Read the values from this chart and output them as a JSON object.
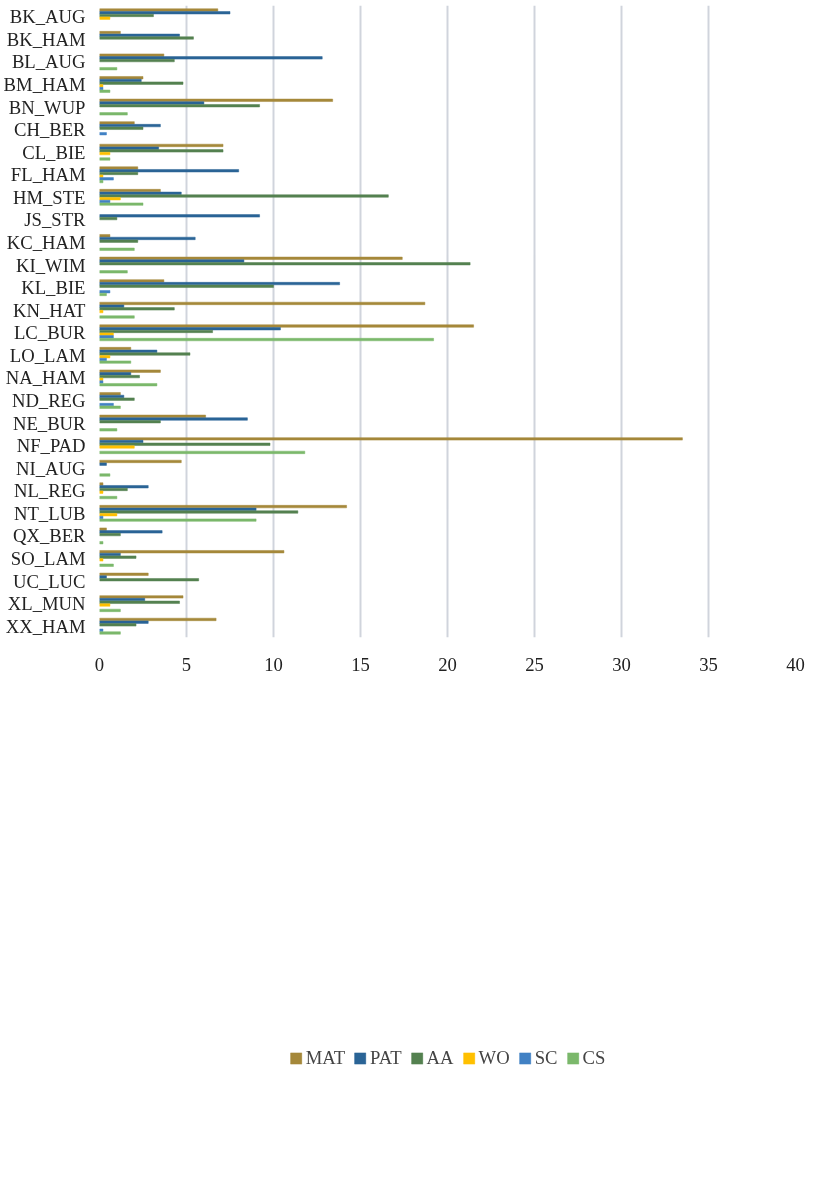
{
  "chart_data": {
    "type": "bar",
    "orientation": "horizontal",
    "categories": [
      "BK_AUG",
      "BK_HAM",
      "BL_AUG",
      "BM_HAM",
      "BN_WUP",
      "CH_BER",
      "CL_BIE",
      "FL_HAM",
      "HM_STE",
      "JS_STR",
      "KC_HAM",
      "KI_WIM",
      "KL_BIE",
      "KN_HAT",
      "LC_BUR",
      "LO_LAM",
      "NA_HAM",
      "ND_REG",
      "NE_BUR",
      "NF_PAD",
      "NI_AUG",
      "NL_REG",
      "NT_LUB",
      "QX_BER",
      "SO_LAM",
      "UC_LUC",
      "XL_MUN",
      "XX_HAM"
    ],
    "series": [
      {
        "name": "MAT",
        "color": "#a5883a",
        "values": [
          6.8,
          1.2,
          3.7,
          2.5,
          13.4,
          2.0,
          7.1,
          2.2,
          3.5,
          null,
          0.6,
          17.4,
          3.7,
          18.7,
          21.5,
          1.8,
          3.5,
          1.2,
          6.1,
          33.5,
          4.7,
          0.2,
          14.2,
          0.4,
          10.6,
          2.8,
          4.8,
          6.7
        ]
      },
      {
        "name": "PAT",
        "color": "#2a6496",
        "values": [
          7.5,
          4.6,
          12.8,
          2.4,
          6.0,
          3.5,
          3.4,
          8.0,
          4.7,
          9.2,
          5.5,
          8.3,
          13.8,
          1.4,
          10.4,
          3.3,
          1.8,
          1.4,
          8.5,
          2.5,
          0.4,
          2.8,
          9.0,
          3.6,
          1.2,
          0.4,
          2.6,
          2.8
        ]
      },
      {
        "name": "AA",
        "color": "#548150",
        "values": [
          3.1,
          5.4,
          4.3,
          4.8,
          9.2,
          2.5,
          7.1,
          2.2,
          16.6,
          1.0,
          2.2,
          21.3,
          10.0,
          4.3,
          6.5,
          5.2,
          2.3,
          2.0,
          3.5,
          9.8,
          null,
          1.6,
          11.4,
          1.2,
          2.1,
          5.7,
          4.6,
          2.1
        ]
      },
      {
        "name": "WO",
        "color": "#ffc000",
        "values": [
          0.6,
          null,
          null,
          0.2,
          null,
          null,
          0.6,
          0.2,
          1.2,
          null,
          null,
          null,
          null,
          0.2,
          0.8,
          0.6,
          0.2,
          null,
          null,
          2.0,
          null,
          0.2,
          1.0,
          null,
          0.2,
          null,
          0.6,
          null
        ]
      },
      {
        "name": "SC",
        "color": "#4181c4",
        "values": [
          null,
          null,
          null,
          0.2,
          null,
          0.4,
          null,
          0.8,
          0.6,
          null,
          null,
          null,
          0.6,
          null,
          0.8,
          0.4,
          0.2,
          0.8,
          null,
          null,
          null,
          null,
          0.2,
          null,
          null,
          null,
          null,
          0.2
        ]
      },
      {
        "name": "CS",
        "color": "#7bb86b",
        "values": [
          null,
          null,
          1.0,
          0.6,
          1.6,
          null,
          0.6,
          0.2,
          2.5,
          null,
          2.0,
          1.6,
          0.4,
          2.0,
          19.2,
          1.8,
          3.3,
          1.2,
          1.0,
          11.8,
          0.6,
          1.0,
          9.0,
          0.2,
          0.8,
          null,
          1.2,
          1.2
        ]
      }
    ],
    "xlim": [
      0,
      40
    ],
    "xticks": [
      0,
      5,
      10,
      15,
      20,
      25,
      30,
      35,
      40
    ],
    "grid": "x",
    "legend": "bottom"
  }
}
